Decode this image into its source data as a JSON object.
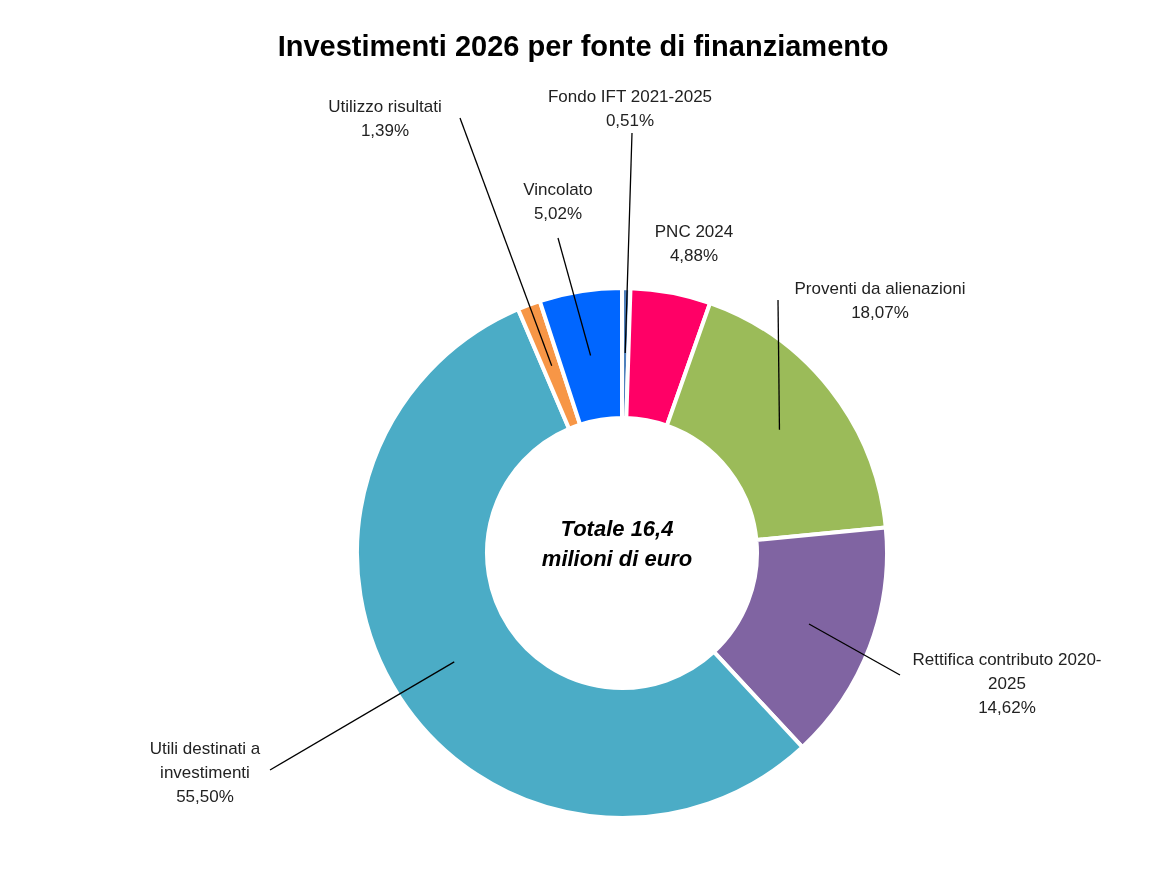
{
  "chart_data": {
    "type": "donut",
    "title": "Investimenti 2026 per fonte di finanziamento",
    "categories": [
      "Fondo IFT 2021-2025",
      "PNC 2024",
      "Proventi da alienazioni",
      "Rettifica contributo 2020-2025",
      "Utili destinati a investimenti",
      "Utilizzo risultati",
      "Vincolato"
    ],
    "values": [
      0.51,
      4.88,
      18.07,
      14.62,
      55.5,
      1.39,
      5.02
    ],
    "colors": [
      "#4f81bd",
      "#ff0066",
      "#9bbb59",
      "#8064a2",
      "#4bacc6",
      "#f79646",
      "#0066ff"
    ],
    "value_labels": [
      "0,51%",
      "4,88%",
      "18,07%",
      "14,62%",
      "55,50%",
      "1,39%",
      "5,02%"
    ],
    "annotations": [
      "Totale 16,4 milioni di euro"
    ]
  }
}
